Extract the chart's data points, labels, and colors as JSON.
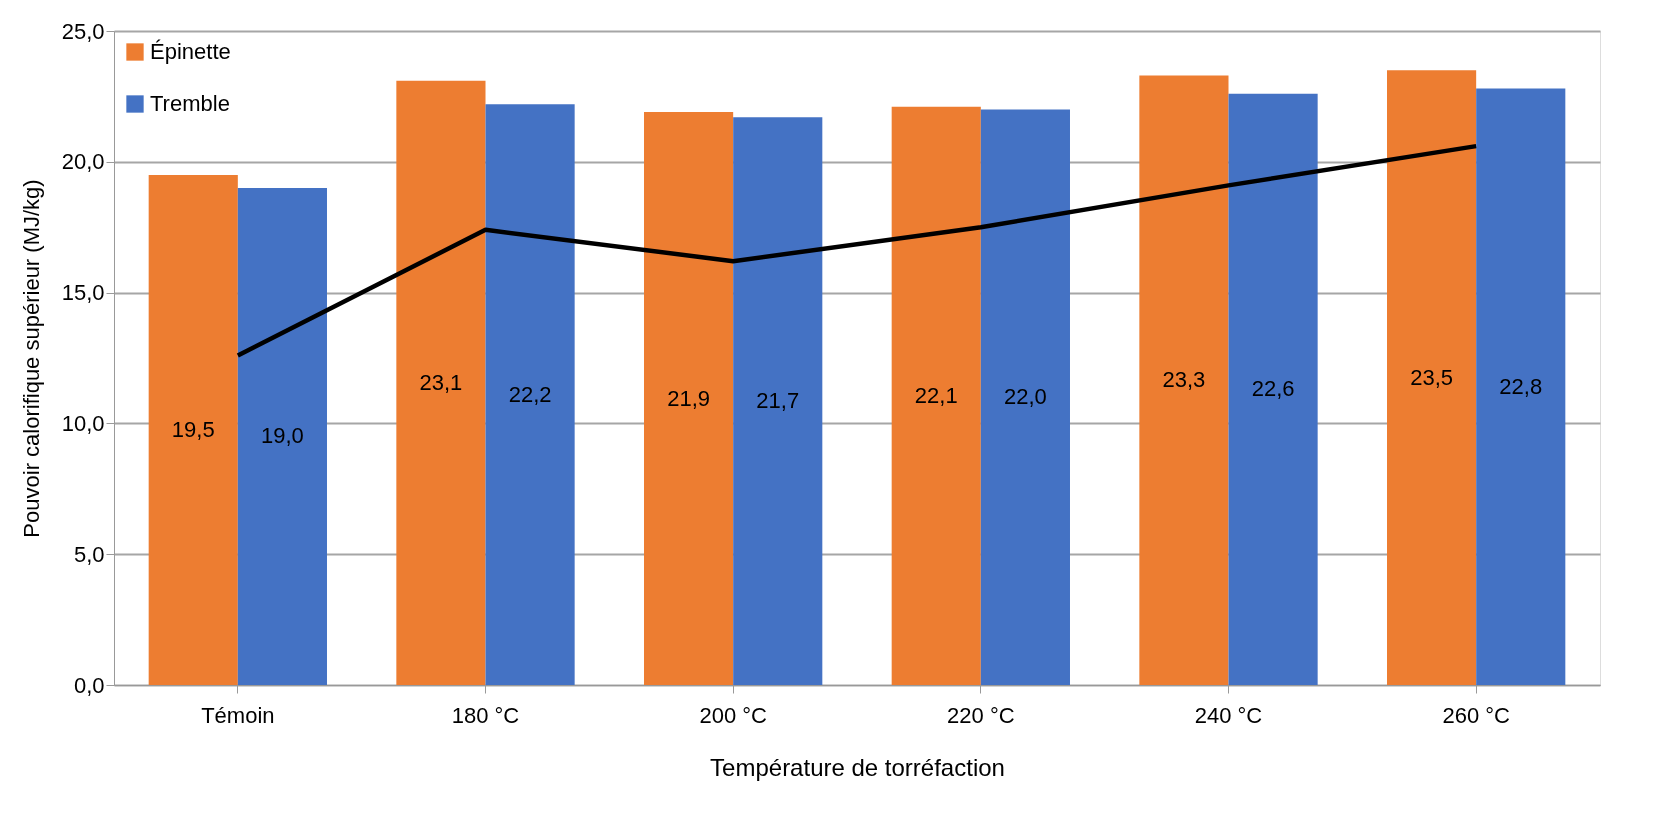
{
  "chart_data": {
    "type": "bar",
    "xlabel": "Température de torréfaction",
    "ylabel": "Pouvoir calorifique supérieur (MJ/kg)",
    "categories": [
      "Témoin",
      "180 °C",
      "200 °C",
      "220 °C",
      "240 °C",
      "260 °C"
    ],
    "series": [
      {
        "name": "Épinette",
        "color": "#ed7d31",
        "values": [
          19.5,
          23.1,
          21.9,
          22.1,
          23.3,
          23.5
        ],
        "value_labels": [
          "19,5",
          "23,1",
          "21,9",
          "22,1",
          "23,3",
          "23,5"
        ]
      },
      {
        "name": "Tremble",
        "color": "#4472c4",
        "values": [
          19.0,
          22.2,
          21.7,
          22.0,
          22.6,
          22.8
        ],
        "value_labels": [
          "19,0",
          "22,2",
          "21,7",
          "22,0",
          "22,6",
          "22,8"
        ]
      },
      {
        "type": "line",
        "color": "#000000",
        "values": [
          12.6,
          17.4,
          16.2,
          17.5,
          19.1,
          20.6
        ]
      }
    ],
    "ylim": [
      0,
      25
    ],
    "yticks": [
      {
        "value": 0,
        "label": "0,0"
      },
      {
        "value": 5,
        "label": "5,0"
      },
      {
        "value": 10,
        "label": "10,0"
      },
      {
        "value": 15,
        "label": "15,0"
      },
      {
        "value": 20,
        "label": "20,0"
      },
      {
        "value": 25,
        "label": "25,0"
      }
    ],
    "grid": "y",
    "legend": "top left"
  }
}
